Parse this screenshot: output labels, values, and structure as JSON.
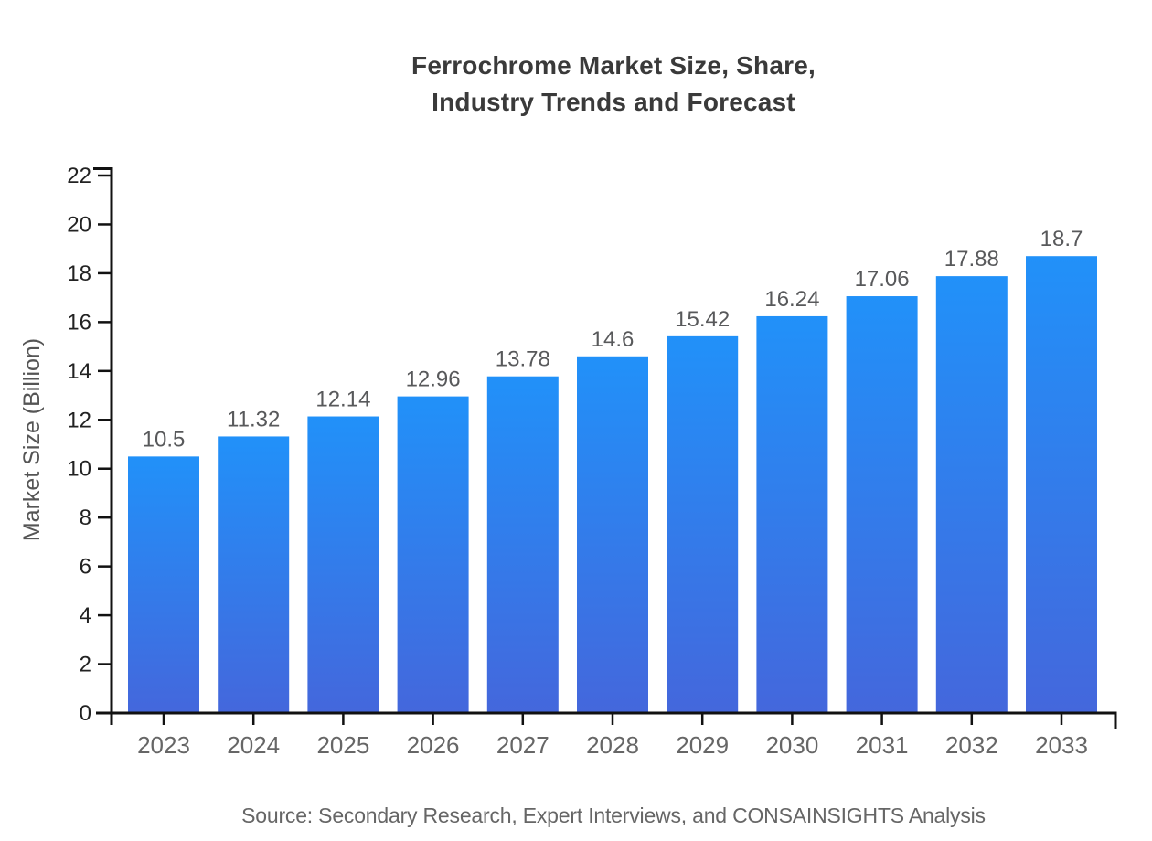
{
  "title": {
    "line1": "Ferrochrome Market Size, Share,",
    "line2": "Industry Trends and Forecast"
  },
  "y_axis_label": "Market Size (Billion)",
  "source_note": "Source: Secondary Research, Expert Interviews, and CONSAINSIGHTS Analysis",
  "chart_data": {
    "type": "bar",
    "title": "Ferrochrome Market Size, Share, Industry Trends and Forecast",
    "xlabel": "",
    "ylabel": "Market Size (Billion)",
    "categories": [
      "2023",
      "2024",
      "2025",
      "2026",
      "2027",
      "2028",
      "2029",
      "2030",
      "2031",
      "2032",
      "2033"
    ],
    "values": [
      10.5,
      11.32,
      12.14,
      12.96,
      13.78,
      14.6,
      15.42,
      16.24,
      17.06,
      17.88,
      18.7
    ],
    "value_labels": [
      "10.5",
      "11.32",
      "12.14",
      "12.96",
      "13.78",
      "14.6",
      "15.42",
      "16.24",
      "17.06",
      "17.88",
      "18.7"
    ],
    "ylim": [
      0,
      22
    ],
    "ytick_step": 2,
    "ytick_labels": [
      "0",
      "2",
      "4",
      "6",
      "8",
      "10",
      "12",
      "14",
      "16",
      "18",
      "20",
      "22"
    ],
    "grid": false,
    "legend": null,
    "colors": {
      "bar_gradient_top": "#2191f9",
      "bar_gradient_bottom": "#4467dc",
      "axis": "#111111",
      "ytick_label": "#222222",
      "xtick_label": "#666666",
      "value_label": "#58595b",
      "title": "#3a3a3a",
      "source": "#666666"
    }
  }
}
